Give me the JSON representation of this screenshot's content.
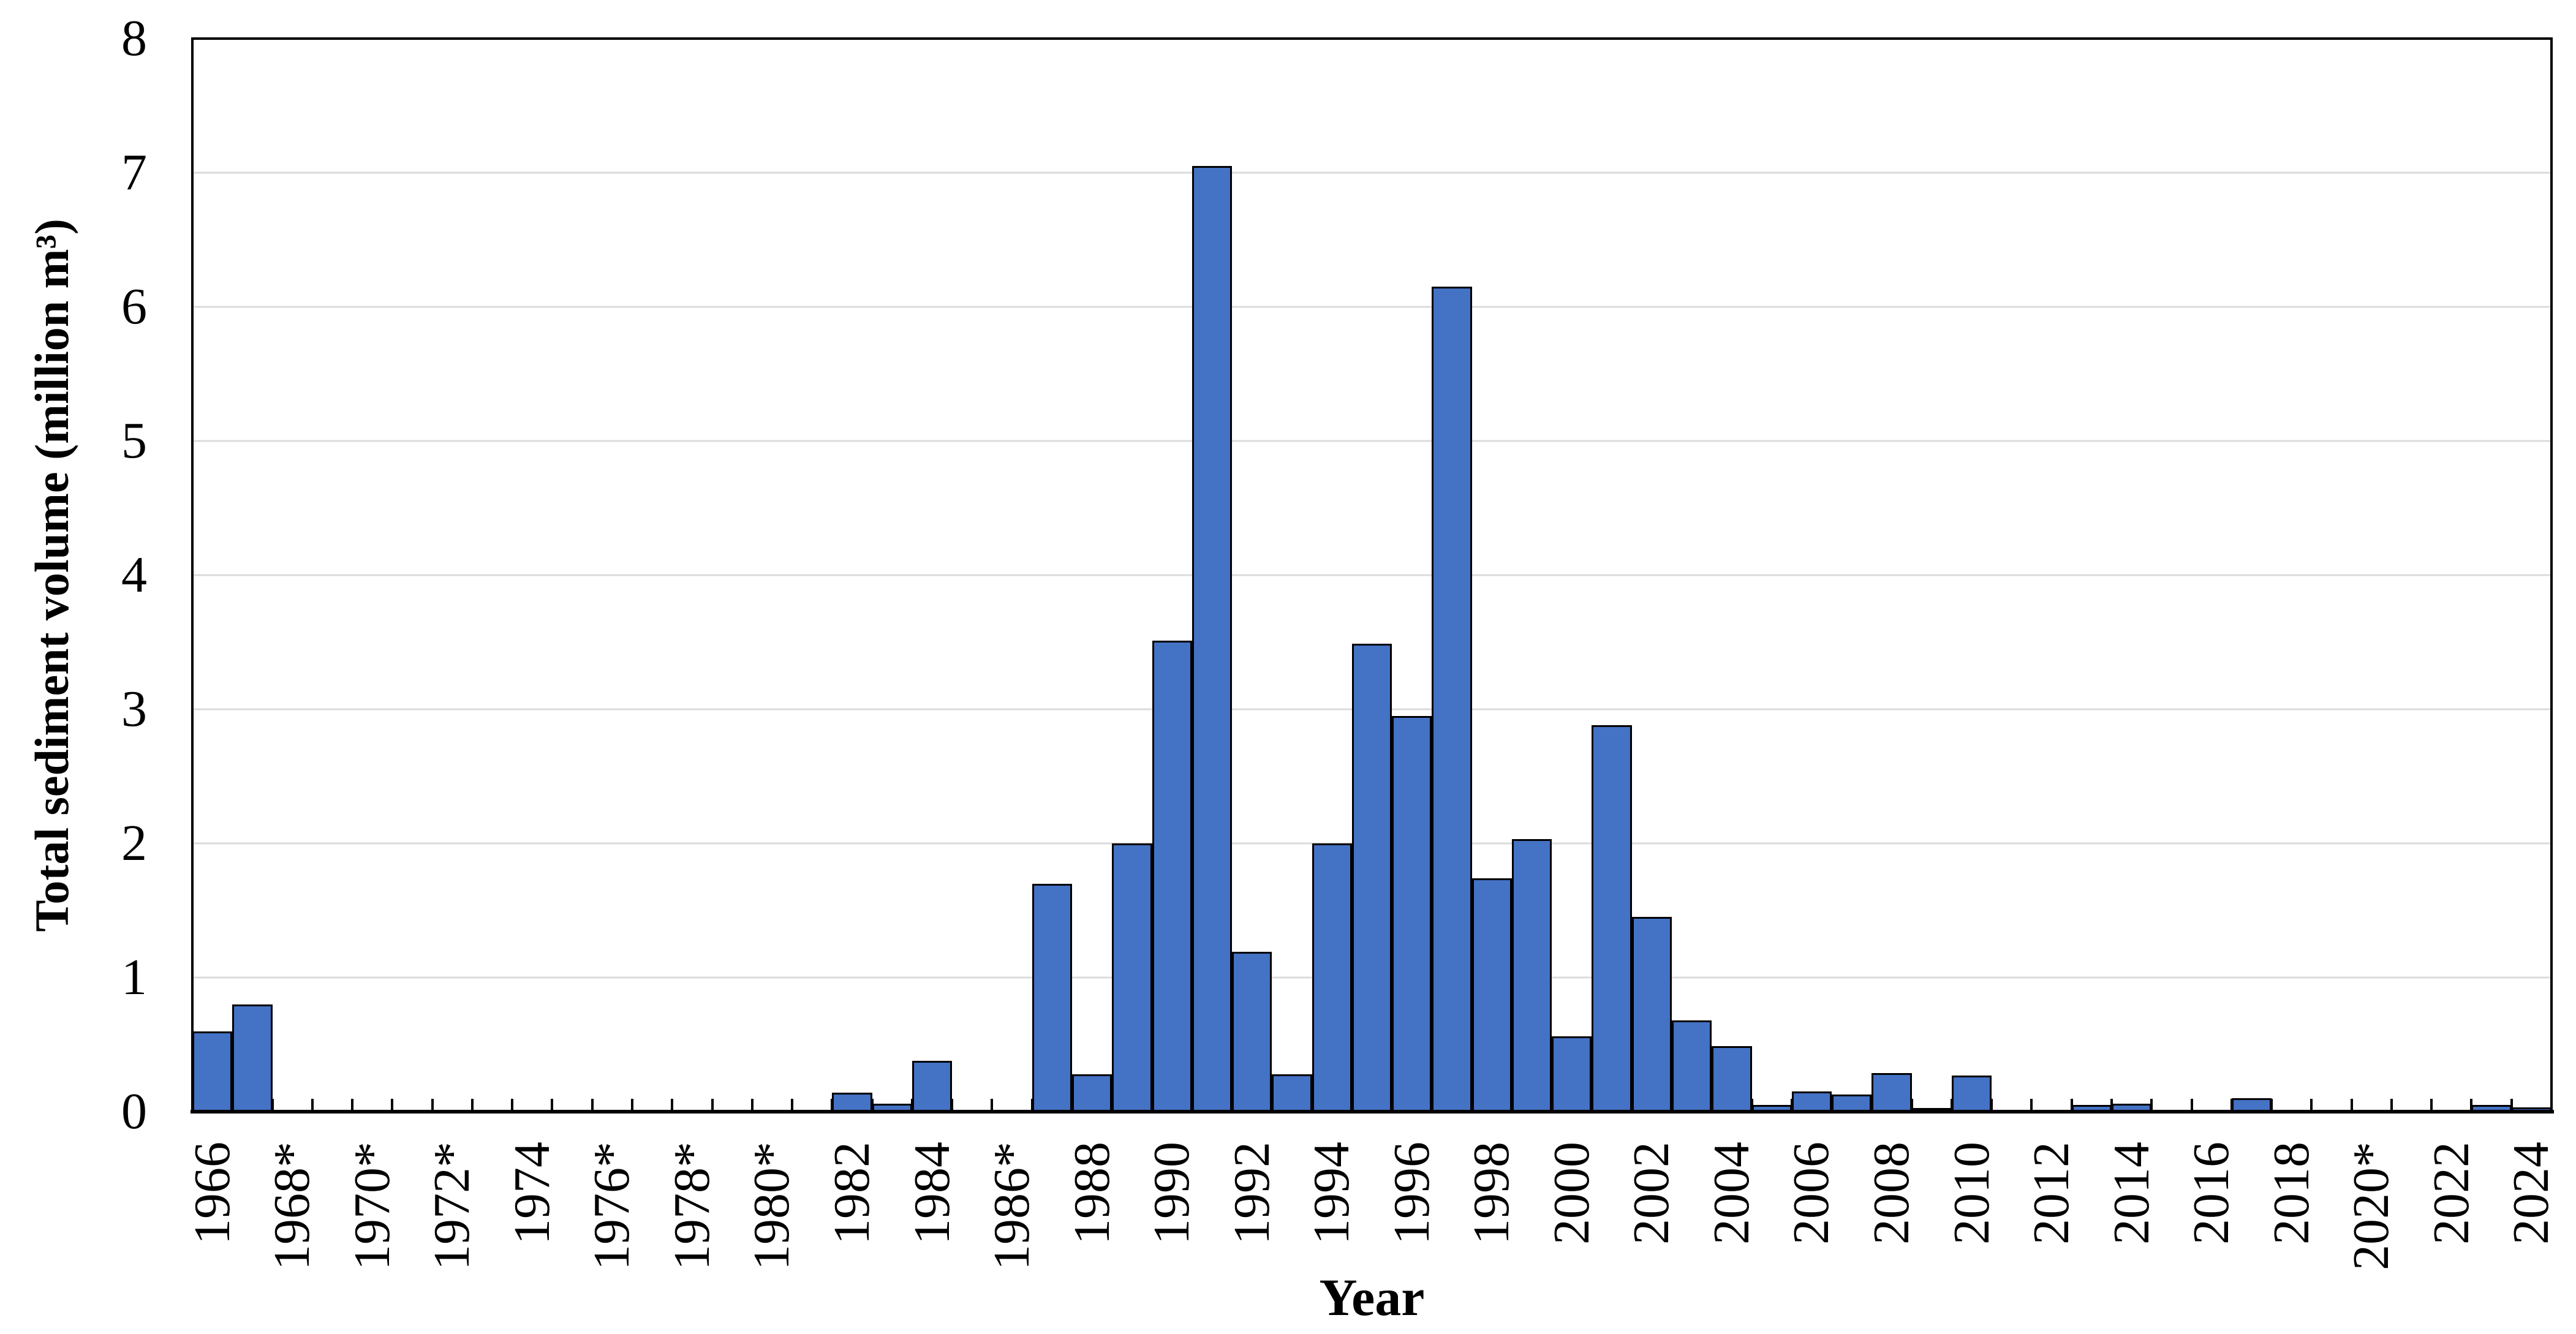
{
  "chart_data": {
    "type": "bar",
    "title": "",
    "xlabel": "Year",
    "ylabel": "Total sediment volume (million m³)",
    "ylim": [
      0,
      8
    ],
    "yticks": [
      0,
      1,
      2,
      3,
      4,
      5,
      6,
      7,
      8
    ],
    "grid": "horizontal",
    "legend_position": "none",
    "years": [
      1966,
      1967,
      1968,
      1969,
      1970,
      1971,
      1972,
      1973,
      1974,
      1975,
      1976,
      1977,
      1978,
      1979,
      1980,
      1981,
      1982,
      1983,
      1984,
      1985,
      1986,
      1987,
      1988,
      1989,
      1990,
      1991,
      1992,
      1993,
      1994,
      1995,
      1996,
      1997,
      1998,
      1999,
      2000,
      2001,
      2002,
      2003,
      2004,
      2005,
      2006,
      2007,
      2008,
      2009,
      2010,
      2011,
      2012,
      2013,
      2014,
      2015,
      2016,
      2017,
      2018,
      2019,
      2020,
      2021,
      2022,
      2023,
      2024
    ],
    "values": [
      0.6,
      0.8,
      0,
      0,
      0,
      0,
      0,
      0,
      0,
      0,
      0,
      0,
      0,
      0,
      0,
      0,
      0.14,
      0.06,
      0.38,
      0,
      0,
      1.7,
      0.28,
      2.0,
      3.51,
      7.05,
      1.19,
      0.28,
      2.0,
      3.49,
      2.95,
      6.15,
      1.74,
      2.03,
      0.56,
      2.88,
      1.45,
      0.68,
      0.49,
      0.05,
      0.15,
      0.13,
      0.29,
      0.02,
      0.27,
      0,
      0,
      0.05,
      0.06,
      0,
      0,
      0.1,
      0,
      0,
      0,
      0,
      0,
      0.05,
      0.03
    ],
    "x_tick_label_years": [
      1966,
      1968,
      1970,
      1972,
      1974,
      1976,
      1978,
      1980,
      1982,
      1984,
      1986,
      1988,
      1990,
      1992,
      1994,
      1996,
      1998,
      2000,
      2002,
      2004,
      2006,
      2008,
      2010,
      2012,
      2014,
      2016,
      2018,
      2020,
      2022,
      2024
    ],
    "x_tick_labels": [
      "1966",
      "1968*",
      "1970*",
      "1972*",
      "1974",
      "1976*",
      "1978*",
      "1980*",
      "1982",
      "1984",
      "1986*",
      "1988",
      "1990",
      "1992",
      "1994",
      "1996",
      "1998",
      "2000",
      "2002",
      "2004",
      "2006",
      "2008",
      "2010",
      "2012",
      "2014",
      "2016",
      "2018",
      "2020*",
      "2022",
      "2024"
    ],
    "colors": {
      "bar_fill": "#4472C4",
      "bar_border": "#000000",
      "gridline": "#DBDBDB",
      "axis": "#000000",
      "background": "#FFFFFF",
      "text": "#000000"
    }
  }
}
